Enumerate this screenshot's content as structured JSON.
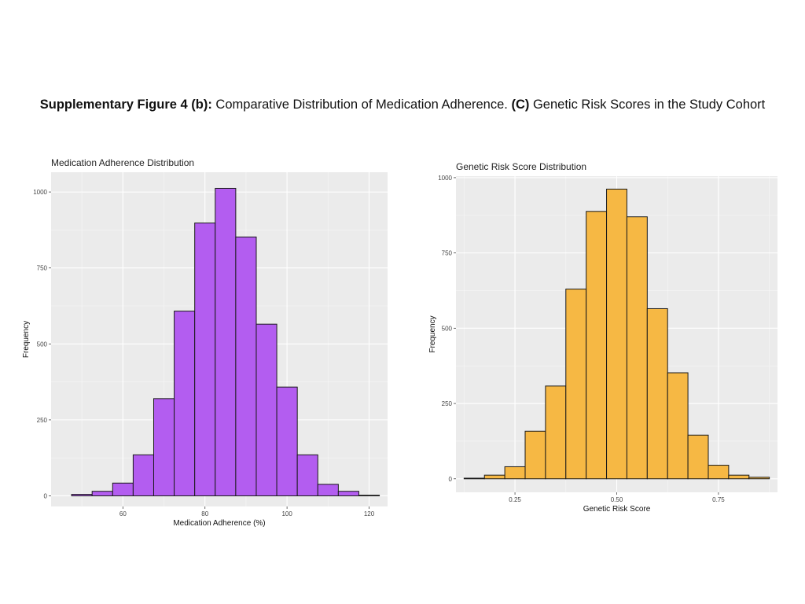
{
  "caption": {
    "part1_bold": "Supplementary Figure 4 (b):",
    "part1_text": " Comparative Distribution of Medication Adherence. ",
    "part2_bold": "(C)",
    "part2_text": " Genetic Risk Scores in the Study Cohort"
  },
  "chart_data": [
    {
      "type": "bar",
      "title": "Medication Adherence Distribution",
      "xlabel": "Medication Adherence (%)",
      "ylabel": "Frequency",
      "bin_width": 5,
      "bin_starts": [
        47.5,
        52.5,
        57.5,
        62.5,
        67.5,
        72.5,
        77.5,
        82.5,
        87.5,
        92.5,
        97.5,
        102.5,
        107.5,
        112.5,
        117.5
      ],
      "values": [
        5,
        15,
        42,
        135,
        320,
        608,
        898,
        1012,
        852,
        565,
        358,
        135,
        38,
        15,
        2
      ],
      "xlim": [
        42.5,
        124.5
      ],
      "ylim": [
        -35,
        1065
      ],
      "xticks": [
        60,
        80,
        100,
        120
      ],
      "yticks": [
        0,
        250,
        500,
        750,
        1000
      ],
      "xtick_labels": [
        "60",
        "80",
        "100",
        "120"
      ],
      "ytick_labels": [
        "0",
        "250",
        "500",
        "750",
        "1000"
      ],
      "fill_color": "#b35df0",
      "edge_color": "#1a1a1a",
      "grid": true
    },
    {
      "type": "bar",
      "title": "Genetic Risk Score Distribution",
      "xlabel": "Genetic Risk Score",
      "ylabel": "Frequency",
      "bin_width": 0.05,
      "bin_starts": [
        0.125,
        0.175,
        0.225,
        0.275,
        0.325,
        0.375,
        0.425,
        0.475,
        0.525,
        0.575,
        0.625,
        0.675,
        0.725,
        0.775,
        0.825
      ],
      "values": [
        2,
        12,
        40,
        158,
        308,
        630,
        888,
        962,
        870,
        565,
        352,
        145,
        45,
        12,
        5
      ],
      "xlim": [
        0.105,
        0.895
      ],
      "ylim": [
        -45,
        1005
      ],
      "xticks": [
        0.25,
        0.5,
        0.75
      ],
      "yticks": [
        0,
        250,
        500,
        750,
        1000
      ],
      "xtick_labels": [
        "0.25",
        "0.50",
        "0.75"
      ],
      "ytick_labels": [
        "0",
        "250",
        "500",
        "750",
        "1000"
      ],
      "fill_color": "#f6b844",
      "edge_color": "#1a1a1a",
      "grid": true
    }
  ]
}
